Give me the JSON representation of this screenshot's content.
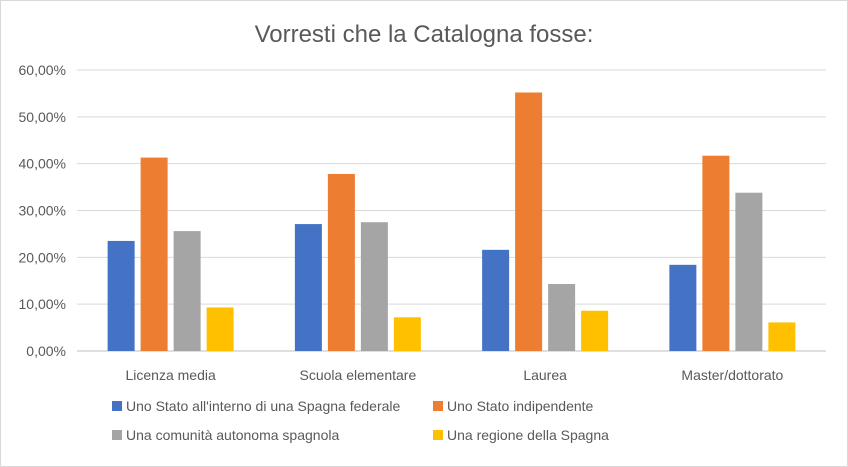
{
  "chart_data": {
    "type": "bar",
    "title": "Vorresti che la Catalogna fosse:",
    "categories": [
      "Licenza media",
      "Scuola elementare",
      "Laurea",
      "Master/dottorato"
    ],
    "y_ticks": [
      "0,00%",
      "10,00%",
      "20,00%",
      "30,00%",
      "40,00%",
      "50,00%",
      "60,00%"
    ],
    "ylim": [
      0,
      60
    ],
    "grid": true,
    "legend_position": "bottom",
    "series": [
      {
        "name": "Uno Stato all'interno di una Spagna federale",
        "color": "#4472c4",
        "values": [
          23.5,
          27.1,
          21.6,
          18.4
        ]
      },
      {
        "name": "Uno Stato indipendente",
        "color": "#ed7d31",
        "values": [
          41.3,
          37.8,
          55.2,
          41.7
        ]
      },
      {
        "name": "Una comunità autonoma spagnola",
        "color": "#a5a5a5",
        "values": [
          25.6,
          27.5,
          14.3,
          33.8
        ]
      },
      {
        "name": "Una regione della Spagna",
        "color": "#ffc000",
        "values": [
          9.3,
          7.2,
          8.6,
          6.1
        ]
      }
    ]
  }
}
